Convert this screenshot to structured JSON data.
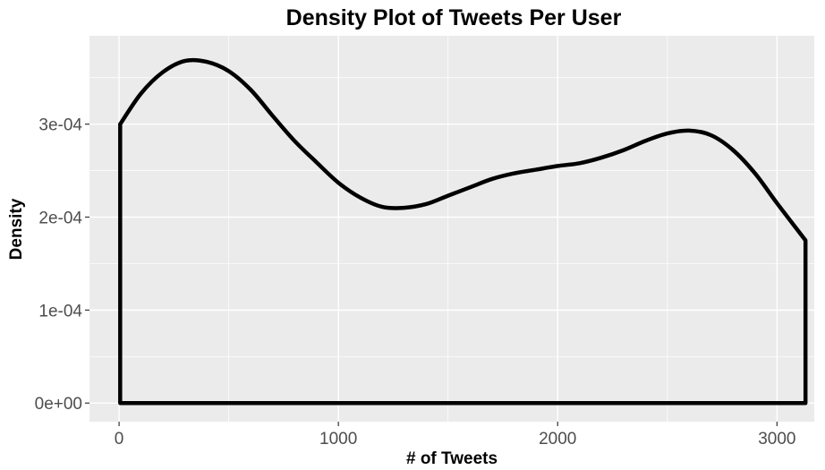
{
  "chart_data": {
    "type": "area",
    "title": "Density Plot of Tweets Per User",
    "xlabel": "# of Tweets",
    "ylabel": "Density",
    "xlim": [
      -135,
      3170
    ],
    "ylim": [
      -2e-05,
      0.000395
    ],
    "x_ticks": [
      0,
      1000,
      2000,
      3000
    ],
    "x_tick_labels": [
      "0",
      "1000",
      "2000",
      "3000"
    ],
    "y_ticks": [
      0,
      0.0001,
      0.0002,
      0.0003
    ],
    "y_tick_labels": [
      "0e+00",
      "1e-04",
      "2e-04",
      "3e-04"
    ],
    "grid": true,
    "legend": "none",
    "colors": {
      "panel_background": "#EBEBEB",
      "grid": "#FFFFFF",
      "line": "#000000",
      "fill": "none"
    },
    "x": [
      5,
      100,
      200,
      300,
      400,
      500,
      600,
      700,
      800,
      900,
      1000,
      1100,
      1200,
      1300,
      1400,
      1500,
      1600,
      1700,
      1800,
      1900,
      2000,
      2100,
      2200,
      2300,
      2400,
      2500,
      2600,
      2700,
      2800,
      2900,
      3000,
      3130
    ],
    "y": [
      0.0003,
      0.000333,
      0.000356,
      0.000368,
      0.000367,
      0.000357,
      0.000337,
      0.000309,
      0.000282,
      0.000259,
      0.000237,
      0.000221,
      0.000211,
      0.00021,
      0.000214,
      0.000223,
      0.000232,
      0.000241,
      0.000247,
      0.000251,
      0.000255,
      0.000258,
      0.000264,
      0.000272,
      0.000282,
      0.00029,
      0.000293,
      0.000288,
      0.000272,
      0.000247,
      0.000215,
      0.000175
    ]
  }
}
